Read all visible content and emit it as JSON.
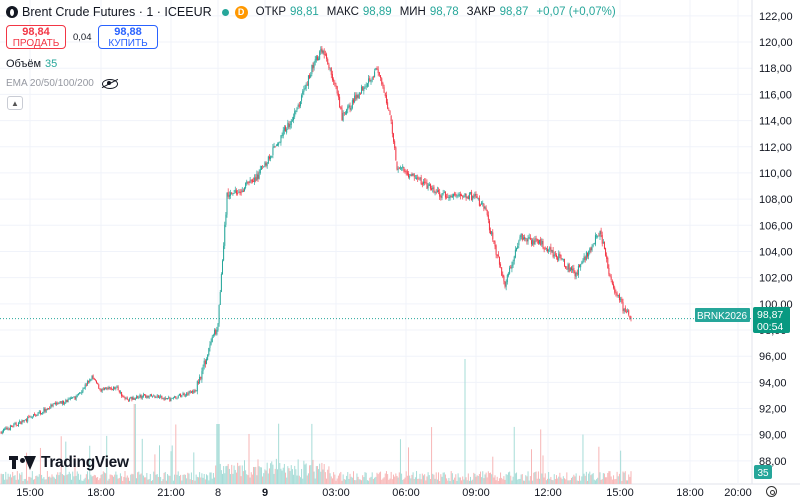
{
  "header": {
    "title": "Brent Crude Futures · 1 · ICEEUR",
    "badge": "D",
    "ohlc": [
      {
        "key": "ОТКР",
        "value": "98,81"
      },
      {
        "key": "МАКС",
        "value": "98,89"
      },
      {
        "key": "МИН",
        "value": "98,78"
      },
      {
        "key": "ЗАКР",
        "value": "98,87"
      },
      {
        "key": "",
        "value": "+0,07 (+0,07%)"
      }
    ]
  },
  "trade": {
    "sell_price": "98,84",
    "sell_label": "ПРОДАТЬ",
    "spread": "0,04",
    "buy_price": "98,88",
    "buy_label": "КУПИТЬ"
  },
  "indicators": {
    "volume_label": "Объём",
    "volume_value": "35",
    "ema_label": "EMA 20/50/100/200"
  },
  "branding": "TradingView",
  "colors": {
    "up": "#26a69a",
    "down": "#f23645",
    "price_tag": "#089981",
    "ticker_tag": "#26a69a"
  },
  "chart_data": {
    "type": "candlestick",
    "timeframe": "1",
    "ylim": [
      87,
      122
    ],
    "y_ticks": [
      "88,00",
      "90,00",
      "92,00",
      "94,00",
      "96,00",
      "98,00",
      "100,00",
      "102,00",
      "104,00",
      "106,00",
      "108,00",
      "110,00",
      "112,00",
      "114,00",
      "116,00",
      "118,00",
      "120,00",
      "122,00"
    ],
    "x_ticks": [
      "15:00",
      "18:00",
      "21:00",
      "8",
      "9",
      "03:00",
      "06:00",
      "09:00",
      "12:00",
      "15:00",
      "18:00",
      "20:00"
    ],
    "last_price": "98,87",
    "last_price_ticker": "BRNK2026",
    "countdown": "00:54",
    "volume_last": "35",
    "price_path": [
      [
        "14:00",
        90.2
      ],
      [
        "15:00",
        91.3
      ],
      [
        "16:00",
        92.2
      ],
      [
        "17:00",
        92.8
      ],
      [
        "17:40",
        94.4
      ],
      [
        "18:00",
        93.4
      ],
      [
        "18:40",
        93.6
      ],
      [
        "19:00",
        92.7
      ],
      [
        "20:00",
        93.0
      ],
      [
        "21:00",
        92.7
      ],
      [
        "21:30",
        93.1
      ],
      [
        "22:00",
        93.3
      ],
      [
        "gap_open",
        98.5
      ],
      [
        "00:00",
        108.2
      ],
      [
        "00:50",
        108.6
      ],
      [
        "01:40",
        109.8
      ],
      [
        "02:30",
        114.8
      ],
      [
        "03:00",
        118.2
      ],
      [
        "03:20",
        119.6
      ],
      [
        "03:45",
        116.4
      ],
      [
        "04:10",
        114.2
      ],
      [
        "05:00",
        116.8
      ],
      [
        "05:30",
        117.9
      ],
      [
        "06:00",
        114.5
      ],
      [
        "06:20",
        110.5
      ],
      [
        "07:00",
        109.4
      ],
      [
        "07:30",
        108.2
      ],
      [
        "08:30",
        108.3
      ],
      [
        "09:00",
        108.1
      ],
      [
        "09:30",
        107.2
      ],
      [
        "10:00",
        104.3
      ],
      [
        "10:40",
        101.5
      ],
      [
        "11:00",
        105.2
      ],
      [
        "12:00",
        104.5
      ],
      [
        "13:00",
        103.4
      ],
      [
        "13:40",
        102.2
      ],
      [
        "14:20",
        105.6
      ],
      [
        "14:45",
        102.0
      ],
      [
        "15:00",
        99.7
      ],
      [
        "15:10",
        98.87
      ]
    ]
  }
}
